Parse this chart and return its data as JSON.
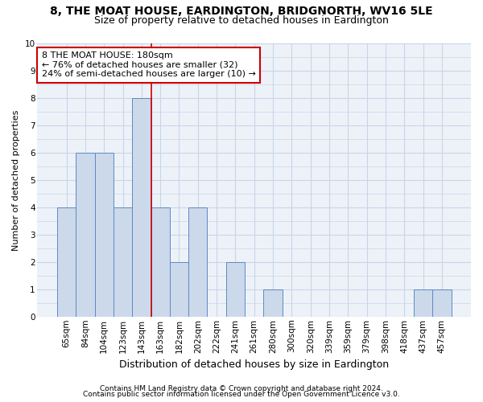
{
  "title": "8, THE MOAT HOUSE, EARDINGTON, BRIDGNORTH, WV16 5LE",
  "subtitle": "Size of property relative to detached houses in Eardington",
  "xlabel": "Distribution of detached houses by size in Eardington",
  "ylabel": "Number of detached properties",
  "categories": [
    "65sqm",
    "84sqm",
    "104sqm",
    "123sqm",
    "143sqm",
    "163sqm",
    "182sqm",
    "202sqm",
    "222sqm",
    "241sqm",
    "261sqm",
    "280sqm",
    "300sqm",
    "320sqm",
    "339sqm",
    "359sqm",
    "379sqm",
    "398sqm",
    "418sqm",
    "437sqm",
    "457sqm"
  ],
  "values": [
    4,
    6,
    6,
    4,
    8,
    4,
    2,
    4,
    0,
    2,
    0,
    1,
    0,
    0,
    0,
    0,
    0,
    0,
    0,
    1,
    1
  ],
  "bar_color": "#ccd9ea",
  "bar_edge_color": "#5b8ac5",
  "highlight_index": 5,
  "highlight_line_color": "#cc0000",
  "annotation_text": "8 THE MOAT HOUSE: 180sqm\n← 76% of detached houses are smaller (32)\n24% of semi-detached houses are larger (10) →",
  "annotation_box_color": "#ffffff",
  "annotation_box_edge_color": "#cc0000",
  "ylim": [
    0,
    10
  ],
  "yticks": [
    0,
    1,
    2,
    3,
    4,
    5,
    6,
    7,
    8,
    9,
    10
  ],
  "footnote1": "Contains HM Land Registry data © Crown copyright and database right 2024.",
  "footnote2": "Contains public sector information licensed under the Open Government Licence v3.0.",
  "bg_color": "#edf2f9",
  "grid_color": "#c8d5e8",
  "fig_bg_color": "#ffffff",
  "title_fontsize": 10,
  "subtitle_fontsize": 9,
  "xlabel_fontsize": 9,
  "ylabel_fontsize": 8,
  "tick_fontsize": 7.5,
  "annotation_fontsize": 8,
  "footnote_fontsize": 6.5
}
